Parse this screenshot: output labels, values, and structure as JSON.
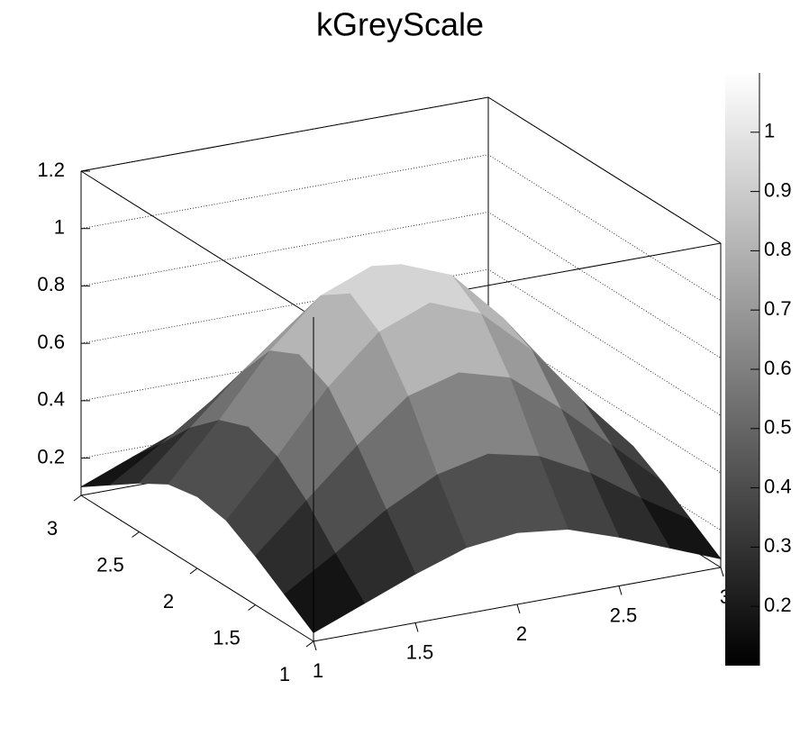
{
  "chart_data": {
    "type": "surface",
    "title": "kGreyScale",
    "x": [
      1,
      1.25,
      1.5,
      1.75,
      2,
      2.25,
      2.5,
      2.75,
      3
    ],
    "y": [
      1,
      1.25,
      1.5,
      1.75,
      2,
      2.25,
      2.5,
      2.75,
      3
    ],
    "z": [
      [
        0.1,
        0.17,
        0.24,
        0.3,
        0.32,
        0.3,
        0.24,
        0.17,
        0.1
      ],
      [
        0.17,
        0.28,
        0.4,
        0.49,
        0.53,
        0.49,
        0.4,
        0.28,
        0.17
      ],
      [
        0.24,
        0.4,
        0.56,
        0.7,
        0.75,
        0.7,
        0.56,
        0.4,
        0.24
      ],
      [
        0.3,
        0.49,
        0.7,
        0.86,
        0.93,
        0.86,
        0.7,
        0.49,
        0.3
      ],
      [
        0.32,
        0.53,
        0.75,
        0.93,
        1.0,
        0.93,
        0.75,
        0.53,
        0.32
      ],
      [
        0.3,
        0.49,
        0.7,
        0.86,
        0.93,
        0.86,
        0.7,
        0.49,
        0.3
      ],
      [
        0.24,
        0.4,
        0.56,
        0.7,
        0.75,
        0.7,
        0.56,
        0.4,
        0.24
      ],
      [
        0.17,
        0.28,
        0.4,
        0.49,
        0.53,
        0.49,
        0.4,
        0.28,
        0.17
      ],
      [
        0.1,
        0.17,
        0.24,
        0.3,
        0.32,
        0.3,
        0.24,
        0.17,
        0.1
      ]
    ],
    "xlim": [
      1,
      3
    ],
    "ylim": [
      1,
      3
    ],
    "zlim": [
      0.07,
      1.2
    ],
    "xticks": [
      1,
      1.5,
      2,
      2.5,
      3
    ],
    "yticks": [
      1,
      1.5,
      2,
      2.5,
      3
    ],
    "zticks": [
      0.2,
      0.4,
      0.6,
      0.8,
      1,
      1.2
    ],
    "colorbar": {
      "range": [
        0.1,
        1.1
      ],
      "ticks": [
        0.2,
        0.3,
        0.4,
        0.5,
        0.6,
        0.7,
        0.8,
        0.9,
        1
      ]
    },
    "palette": [
      "#000000",
      "#ffffff"
    ],
    "grid": true
  }
}
